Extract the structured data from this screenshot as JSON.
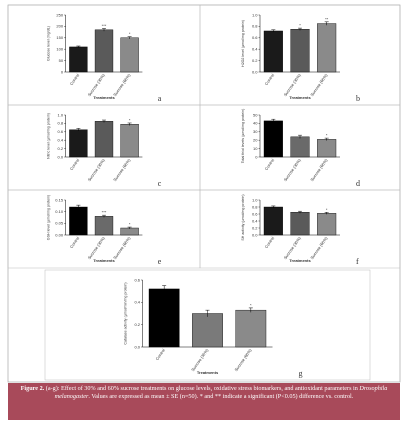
{
  "chart_data": [
    {
      "type": "bar",
      "panel": "a",
      "y_label": "Glucose level (mg/dL)",
      "x_label": "Treatments",
      "categories": [
        "Control",
        "Sucrose (30%)",
        "Sucrose (60%)"
      ],
      "values": [
        110,
        185,
        150
      ],
      "errors": [
        4,
        6,
        5
      ],
      "colors": [
        "#1a1a1a",
        "#5a5a5a",
        "#8a8a8a"
      ],
      "annotations": [
        null,
        "***",
        "*"
      ],
      "ylim": [
        0,
        250
      ],
      "yticks": [
        0,
        50,
        100,
        150,
        200,
        250
      ]
    },
    {
      "type": "bar",
      "panel": "b",
      "y_label": "H2O2 level (µmol/mg protein)",
      "x_label": "Treatments",
      "categories": [
        "Control",
        "Sucrose (30%)",
        "Sucrose (60%)"
      ],
      "values": [
        0.72,
        0.75,
        0.85
      ],
      "errors": [
        0.02,
        0.02,
        0.03
      ],
      "colors": [
        "#1a1a1a",
        "#5a5a5a",
        "#8a8a8a"
      ],
      "annotations": [
        null,
        "*",
        "**"
      ],
      "ylim": [
        0,
        1
      ],
      "yticks": [
        {
          "value": 0,
          "label": "0.0"
        },
        0.2,
        0.4,
        0.6,
        0.8,
        {
          "value": 1,
          "label": "1.0"
        }
      ]
    },
    {
      "type": "bar",
      "panel": "c",
      "y_label": "Nitric level (µmol/mg protein)",
      "x_label": null,
      "categories": [
        "Control",
        "Sucrose (30%)",
        "Sucrose (60%)"
      ],
      "values": [
        0.65,
        0.85,
        0.78
      ],
      "errors": [
        0.03,
        0.03,
        0.03
      ],
      "colors": [
        "#1a1a1a",
        "#5a5a5a",
        "#8a8a8a"
      ],
      "annotations": [
        null,
        null,
        "*"
      ],
      "ylim": [
        0,
        1
      ],
      "yticks": [
        {
          "value": 0,
          "label": "0.0"
        },
        0.2,
        0.4,
        0.6,
        0.8,
        {
          "value": 1,
          "label": "1.0"
        }
      ]
    },
    {
      "type": "bar",
      "panel": "d",
      "y_label": "Total thiol levels (µmol/mg protein)",
      "x_label": null,
      "categories": [
        "Control",
        "Sucrose (30%)",
        "Sucrose (60%)"
      ],
      "values": [
        43,
        24,
        21
      ],
      "errors": [
        2,
        2,
        1.5
      ],
      "colors": [
        "#000000",
        "#6a6a6a",
        "#8a8a8a"
      ],
      "annotations": [
        null,
        null,
        "*"
      ],
      "ylim": [
        0,
        50
      ],
      "yticks": [
        0,
        10,
        20,
        30,
        40,
        50
      ]
    },
    {
      "type": "bar",
      "panel": "e",
      "y_label": "GSH level (µmol/mg protein)",
      "x_label": "Treatments",
      "categories": [
        "Control",
        "Sucrose (30%)",
        "Sucrose (60%)"
      ],
      "values": [
        0.12,
        0.08,
        0.03
      ],
      "errors": [
        0.008,
        0.005,
        0.004
      ],
      "colors": [
        "#000000",
        "#6a6a6a",
        "#8a8a8a"
      ],
      "annotations": [
        null,
        "***",
        "*"
      ],
      "ylim": [
        0,
        0.15
      ],
      "yticks": [
        {
          "value": 0,
          "label": "0.00"
        },
        0.05,
        {
          "value": 0.1,
          "label": "0.10"
        },
        0.15
      ]
    },
    {
      "type": "bar",
      "panel": "f",
      "y_label": "SH activity (µmol/mg protein)",
      "x_label": "Treatments",
      "categories": [
        "Control",
        "Sucrose (30%)",
        "Sucrose (60%)"
      ],
      "values": [
        0.8,
        0.65,
        0.62
      ],
      "errors": [
        0.03,
        0.03,
        0.03
      ],
      "colors": [
        "#1a1a1a",
        "#5a5a5a",
        "#8a8a8a"
      ],
      "annotations": [
        null,
        null,
        "*"
      ],
      "ylim": [
        0,
        1
      ],
      "yticks": [
        {
          "value": 0,
          "label": "0.0"
        },
        0.2,
        0.4,
        0.6,
        0.8,
        {
          "value": 1,
          "label": "1.0"
        }
      ]
    },
    {
      "type": "bar",
      "panel": "g",
      "y_label": "Catalase activity (µmol/min/mg protein)",
      "x_label": "Treatments",
      "categories": [
        "Control",
        "Sucrose (30%)",
        "Sucrose (60%)"
      ],
      "values": [
        0.52,
        0.3,
        0.33
      ],
      "errors": [
        0.03,
        0.03,
        0.02
      ],
      "colors": [
        "#000000",
        "#7a7a7a",
        "#8a8a8a"
      ],
      "annotations": [
        null,
        null,
        "*"
      ],
      "ylim": [
        0,
        0.6
      ],
      "yticks": [
        {
          "value": 0,
          "label": "0.0"
        },
        0.2,
        0.4,
        0.6
      ]
    }
  ],
  "caption": {
    "label": "Figure 2.",
    "text_1": " (a-g): Effect of 30% and 60% sucrose treatments on glucose levels, oxidative stress biomarkers, and antioxidant parameters in ",
    "species": "Drosophila melanogaster",
    "text_2": ". Values are expressed as mean ± SE (n=50). * and ** indicate a significant (P<0.05) difference vs. control."
  }
}
